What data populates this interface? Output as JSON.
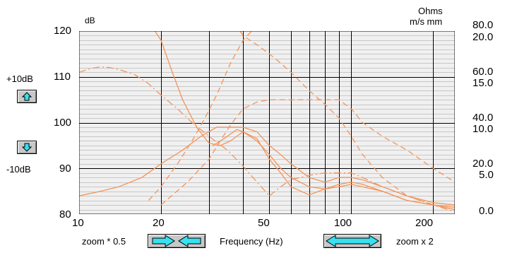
{
  "left_axis": {
    "unit": "dB",
    "ticks": [
      "120",
      "110",
      "100",
      "90",
      "80"
    ]
  },
  "right_axis": {
    "unit_line1": "Ohms",
    "unit_line2": "m/s mm",
    "ohms_ticks": [
      "80.0",
      "60.0",
      "40.0",
      "20.0",
      "0.0"
    ],
    "ms_ticks": [
      "20.0",
      "15.0",
      "10.0",
      "5.0"
    ]
  },
  "x_axis": {
    "label": "Frequency (Hz)",
    "ticks": [
      "10",
      "20",
      "50",
      "100",
      "200"
    ]
  },
  "controls": {
    "plus_label": "+10dB",
    "minus_label": "-10dB",
    "zoom_out_label": "zoom * 0.5",
    "zoom_in_label": "zoom x 2"
  },
  "colors": {
    "curve": "#f4945a",
    "grid_major": "#000000",
    "grid_minor": "#c8c8c8",
    "plot_bg": "#f0f0f0",
    "button_arrow": "#38e0f0"
  },
  "chart_data": {
    "type": "line",
    "x_scale": "log",
    "xlim": [
      10,
      240
    ],
    "ylim": [
      80,
      120
    ],
    "grid": true,
    "series": [
      {
        "style": "solid",
        "x": [
          10,
          12,
          14,
          17,
          20,
          24,
          28,
          32,
          36,
          40,
          45,
          50,
          55,
          60,
          70,
          80,
          90,
          100,
          110,
          130,
          160,
          200,
          240
        ],
        "values": [
          84,
          85,
          86,
          88,
          91,
          94,
          97,
          99,
          99,
          99,
          98,
          95,
          93,
          91,
          88,
          87,
          88,
          88,
          87.5,
          86,
          84,
          82.5,
          82
        ]
      },
      {
        "style": "solid",
        "x": [
          19,
          20,
          22,
          24,
          27,
          30,
          33,
          36,
          40,
          45,
          50,
          55,
          60,
          70,
          80,
          90,
          100,
          110,
          130,
          160,
          200,
          240
        ],
        "values": [
          120,
          118,
          111,
          105,
          99,
          95.5,
          95,
          96,
          98,
          96.5,
          92,
          89,
          86,
          84.2,
          85.5,
          86.5,
          87,
          86.5,
          85,
          83,
          82,
          81.5
        ]
      },
      {
        "style": "solid",
        "x": [
          31,
          33,
          35,
          38,
          40,
          45,
          50,
          55,
          60,
          70,
          80,
          90,
          100,
          130,
          160,
          200,
          240
        ],
        "values": [
          95,
          96,
          97,
          98.5,
          98,
          96,
          93,
          90,
          88,
          86,
          85.5,
          86,
          86.5,
          85,
          83,
          82,
          81
        ]
      },
      {
        "style": "dashed",
        "x": [
          20,
          25,
          30,
          33,
          36,
          40,
          45,
          50,
          55,
          60,
          70,
          80,
          90,
          100,
          110,
          130,
          160,
          200,
          240
        ],
        "values": [
          82,
          87,
          92,
          96,
          99.5,
          103,
          104.5,
          105,
          105,
          105,
          105,
          105,
          105,
          103,
          100,
          97,
          94,
          90,
          87
        ]
      },
      {
        "style": "dashed",
        "x": [
          18,
          20,
          23,
          26,
          29,
          32,
          36,
          40,
          43
        ],
        "values": [
          83,
          86,
          91,
          96,
          101,
          106,
          113,
          118,
          120
        ]
      },
      {
        "style": "dashed",
        "x": [
          39,
          40,
          45,
          50,
          55,
          60,
          70,
          80,
          90,
          100,
          110,
          130,
          160,
          200,
          240
        ],
        "values": [
          120,
          119,
          117,
          115,
          113,
          111,
          107,
          104,
          101,
          97,
          93,
          88,
          84,
          82,
          81
        ]
      },
      {
        "style": "dashdot",
        "x": [
          10,
          11,
          12,
          13,
          14,
          16,
          18,
          20,
          23,
          26,
          30,
          35,
          40,
          45,
          50
        ],
        "values": [
          111,
          111.8,
          112.2,
          112,
          111.6,
          110.5,
          108.5,
          106,
          103,
          100,
          97,
          94,
          90.5,
          87,
          84
        ]
      },
      {
        "style": "dashdot",
        "x": [
          50,
          55,
          60,
          70,
          80,
          90,
          100,
          110,
          130,
          160,
          200,
          240
        ],
        "values": [
          84,
          86,
          87.5,
          88.5,
          89,
          89,
          89,
          88,
          86,
          84,
          82,
          80.5
        ]
      }
    ]
  }
}
